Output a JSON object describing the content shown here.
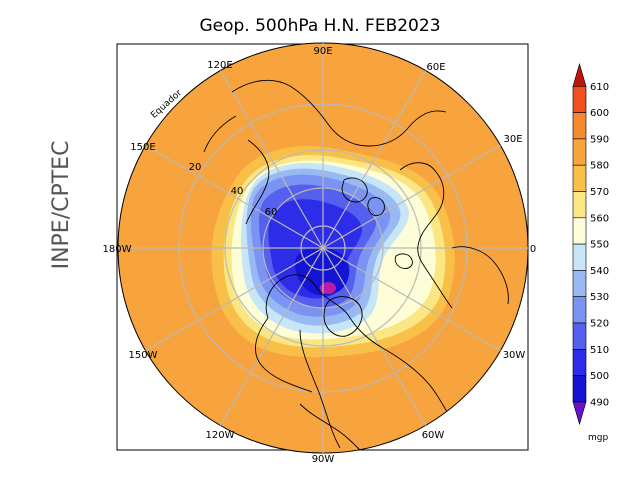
{
  "title": "Geop. 500hPa H.N. FEB2023",
  "credit": "INPE/CPTEC",
  "equator_label": "Equador",
  "longitude_labels": {
    "lon_90e": "90E",
    "lon_60e": "60E",
    "lon_30e": "30E",
    "lon_0": "0",
    "lon_30w": "30W",
    "lon_60w": "60W",
    "lon_90w": "90W",
    "lon_120w": "120W",
    "lon_150w": "150W",
    "lon_180w": "180W",
    "lon_150e": "150E",
    "lon_120e": "120E"
  },
  "latitude_labels": {
    "lat_20": "20",
    "lat_40": "40",
    "lat_60": "60"
  },
  "colorbar": {
    "unit": "mgp",
    "levels": [
      "610",
      "600",
      "590",
      "580",
      "570",
      "560",
      "550",
      "540",
      "530",
      "520",
      "510",
      "500",
      "490"
    ],
    "colors": [
      "#c0150c",
      "#f0501e",
      "#f58a2e",
      "#f7a43f",
      "#f8c048",
      "#fae784",
      "#fdfdd8",
      "#c6e5f7",
      "#98b9f3",
      "#7b93f2",
      "#5560ee",
      "#2d2ce8",
      "#1414d4",
      "#6a12c8"
    ]
  },
  "palette": {
    "purple_core": "#b61ea8",
    "grid": "#b9b9b9",
    "coast": "#000000"
  }
}
